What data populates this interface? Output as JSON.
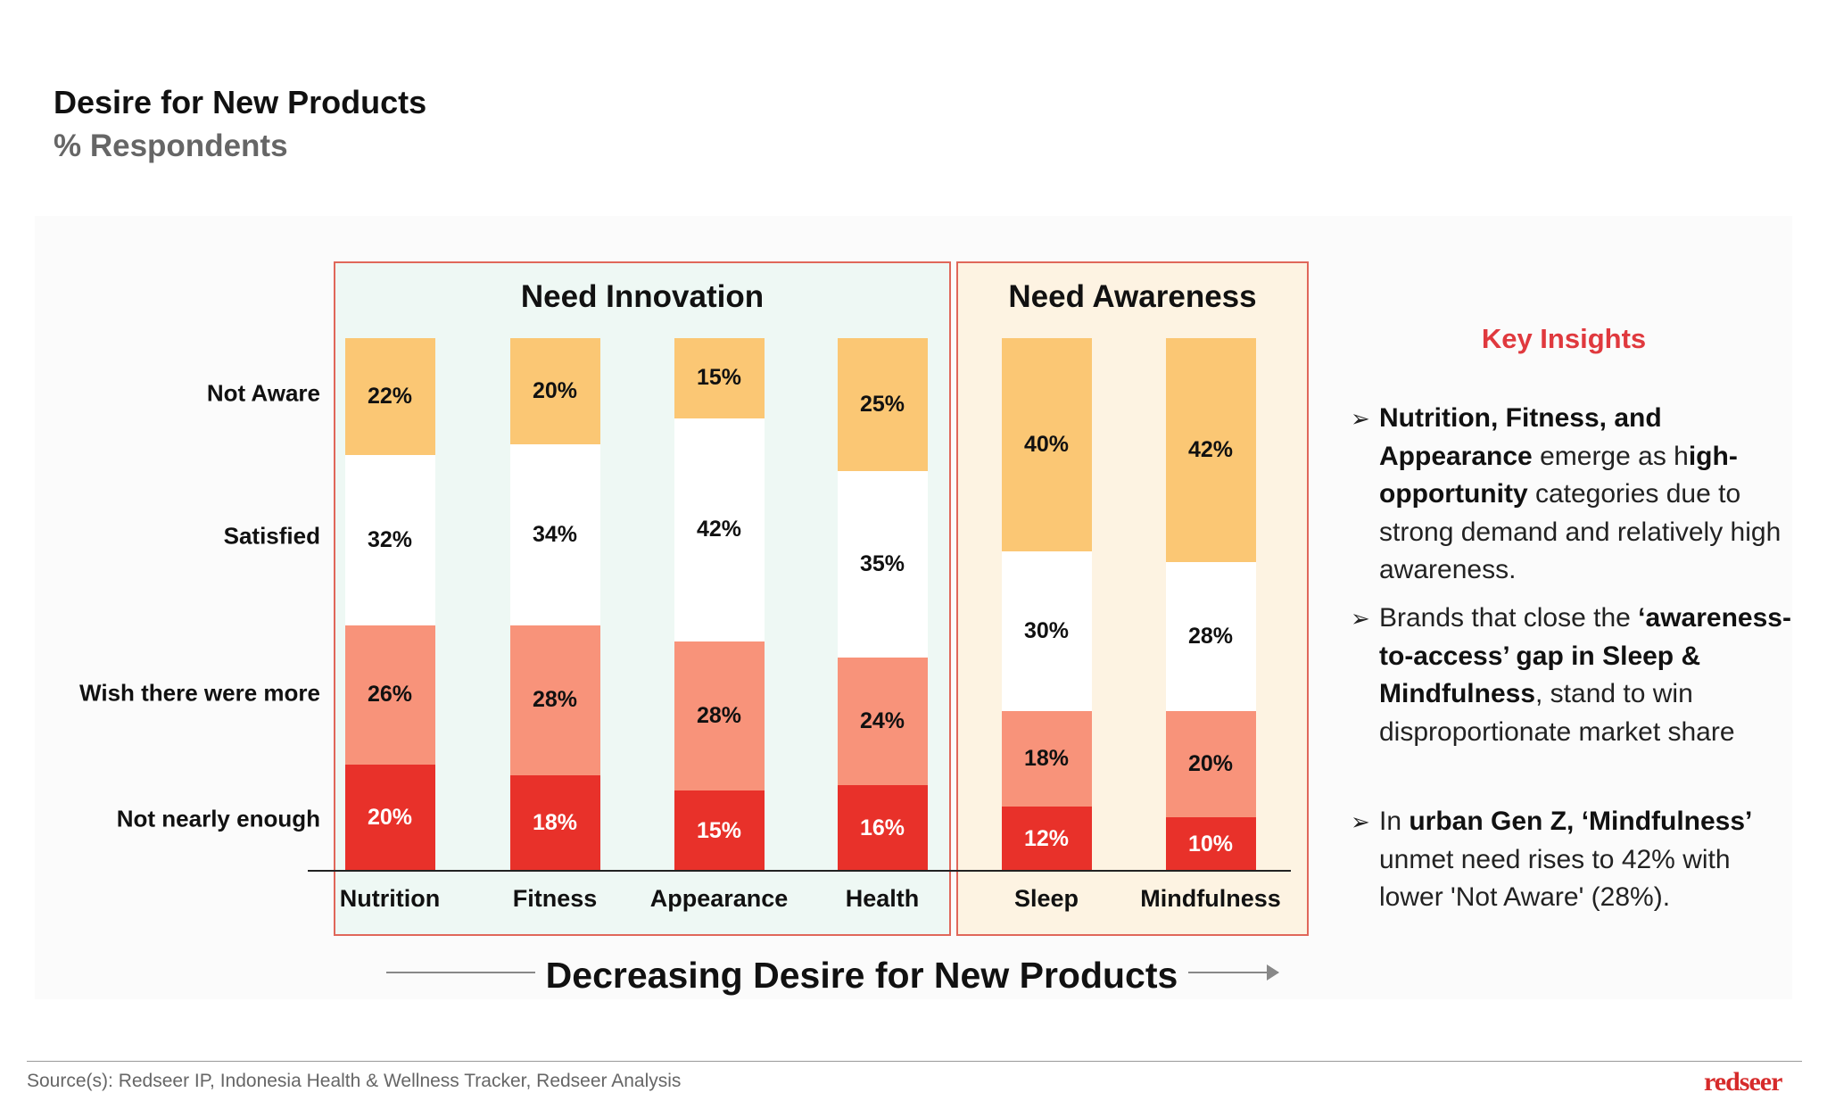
{
  "header": {
    "title": "Desire for New Products",
    "subtitle": "% Respondents"
  },
  "groups": {
    "innovation": "Need Innovation",
    "awareness": "Need Awareness"
  },
  "colors": {
    "not_aware": "#fbc774",
    "satisfied": "#ffffff",
    "wish_more": "#f8937a",
    "not_nearly_enough": "#e8312a",
    "accent": "#e0393e"
  },
  "chart_data": {
    "type": "bar",
    "stacked": true,
    "categories": [
      "Nutrition",
      "Fitness",
      "Appearance",
      "Health",
      "Sleep",
      "Mindfulness"
    ],
    "series": [
      {
        "name": "Not nearly enough",
        "values": [
          20,
          18,
          15,
          16,
          12,
          10
        ],
        "labels": [
          "20%",
          "18%",
          "15%",
          "16%",
          "12%",
          "10%"
        ]
      },
      {
        "name": "Wish there were more",
        "values": [
          26,
          28,
          28,
          24,
          18,
          20
        ],
        "labels": [
          "26%",
          "28%",
          "28%",
          "24%",
          "18%",
          "20%"
        ]
      },
      {
        "name": "Satisfied",
        "values": [
          32,
          34,
          42,
          35,
          30,
          28
        ],
        "labels": [
          "32%",
          "34%",
          "42%",
          "35%",
          "30%",
          "28%"
        ]
      },
      {
        "name": "Not Aware",
        "values": [
          22,
          20,
          15,
          25,
          40,
          42
        ],
        "labels": [
          "22%",
          "20%",
          "15%",
          "25%",
          "40%",
          "42%"
        ]
      }
    ],
    "row_labels": [
      "Not Aware",
      "Satisfied",
      "Wish there were more",
      "Not nearly enough"
    ],
    "xlabel": "Decreasing Desire for New Products",
    "ylim": [
      0,
      100
    ]
  },
  "insights": {
    "title": "Key Insights",
    "items": [
      {
        "b1": "Nutrition, Fitness, and Appearance",
        "t1": " emerge as h",
        "b2": "igh-opportunity",
        "t2": " categories due to strong demand and relatively high awareness."
      },
      {
        "t0": "Brands that close the ",
        "b1": "‘awareness-to-access’ gap in Sleep & Mindfulness",
        "t1": ", stand to win disproportionate market share"
      },
      {
        "t0": "In ",
        "b1": "urban Gen Z, ‘Mindfulness’",
        "t1": " unmet need rises to 42% with lower 'Not Aware' (28%)."
      }
    ]
  },
  "footer": {
    "source": "Source(s): Redseer IP, Indonesia Health & Wellness Tracker, Redseer Analysis",
    "logo": "redseer"
  }
}
